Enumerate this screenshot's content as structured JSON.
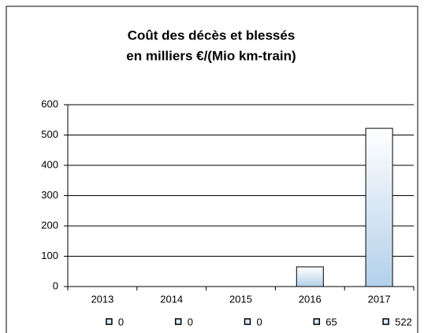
{
  "chart_data": {
    "type": "bar",
    "title": [
      "Coût des décès et blessés",
      "en milliers €/(Mio km-train)"
    ],
    "categories": [
      "2013",
      "2014",
      "2015",
      "2016",
      "2017"
    ],
    "values": [
      0,
      0,
      0,
      65,
      522
    ],
    "color": "#b3d0ea",
    "ylim": [
      0,
      600
    ],
    "yticks": [
      0,
      100,
      200,
      300,
      400,
      500,
      600
    ],
    "grid": true
  }
}
